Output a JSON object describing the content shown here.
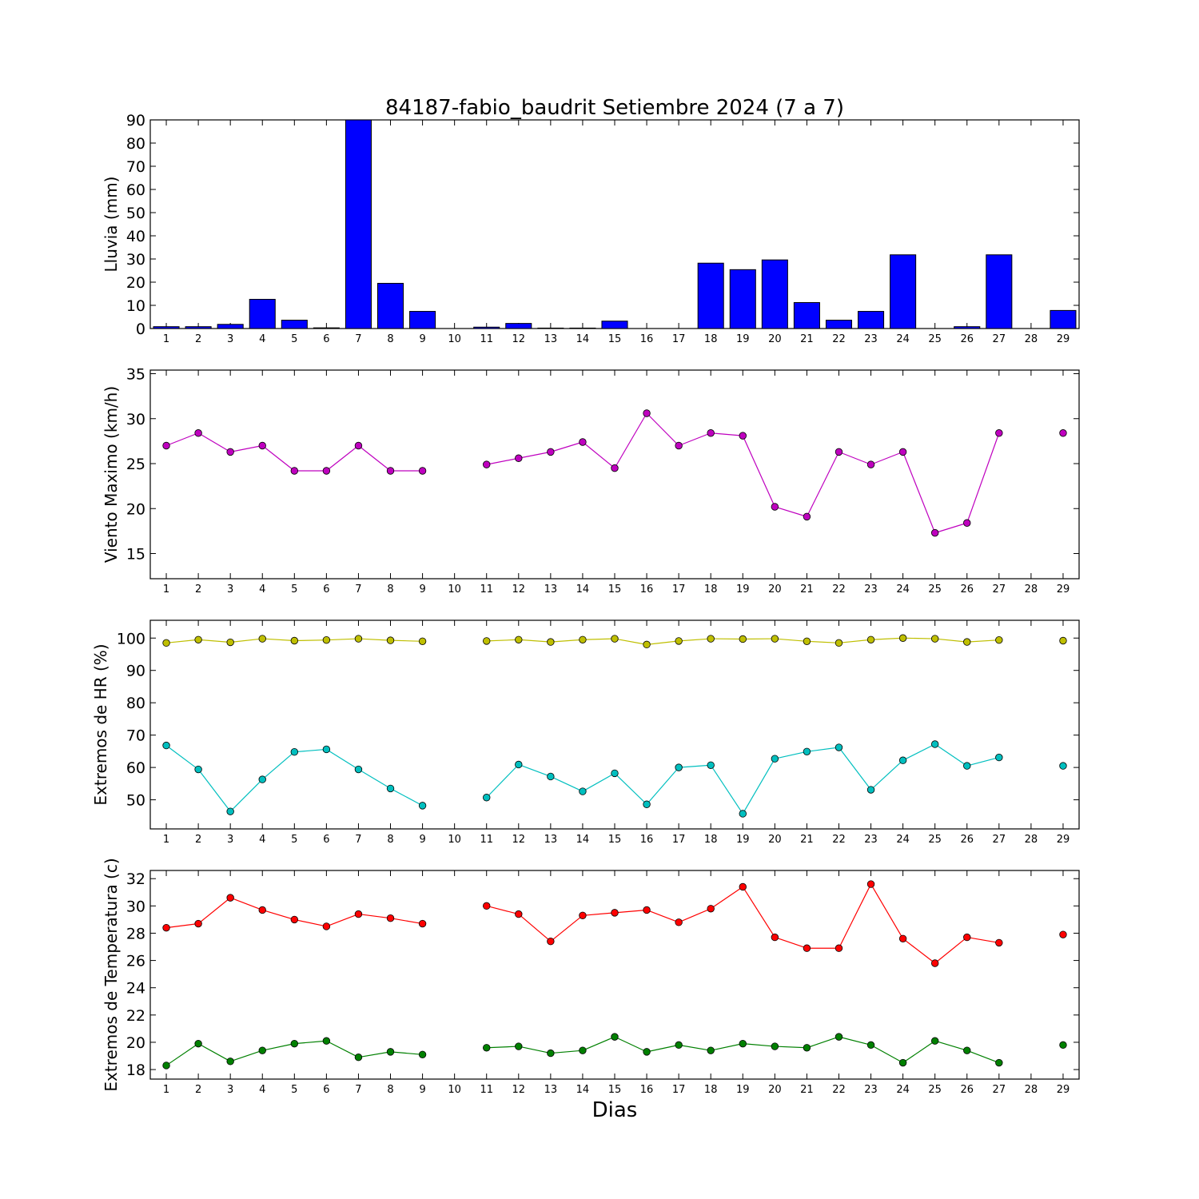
{
  "figure": {
    "title": "84187-fabio_baudrit Setiembre 2024  (7 a 7)",
    "xlabel": "Dias"
  },
  "chart_data": [
    {
      "id": "rain",
      "type": "bar",
      "ylabel": "Lluvia (mm)",
      "ylim": [
        0,
        90
      ],
      "yticks": [
        0,
        10,
        20,
        30,
        40,
        50,
        60,
        70,
        80,
        90
      ],
      "xticks": [
        "1",
        "2",
        "3",
        "4",
        "5",
        "6",
        "7",
        "8",
        "9",
        "10",
        "11",
        "12",
        "13",
        "14",
        "15",
        "16",
        "17",
        "18",
        "19",
        "20",
        "21",
        "22",
        "23",
        "24",
        "25",
        "26",
        "27",
        "28",
        "29"
      ],
      "color": "#0000ff",
      "series": [
        {
          "x": [
            1,
            2,
            3,
            4,
            5,
            6,
            7,
            8,
            9,
            10,
            11,
            12,
            13,
            14,
            15,
            16,
            17,
            18,
            19,
            20,
            21,
            22,
            23,
            24,
            25,
            26,
            27,
            28,
            29
          ],
          "values": [
            0.8,
            0.8,
            1.8,
            12.6,
            3.6,
            0.3,
            90,
            19.5,
            7.4,
            0,
            0.6,
            2.2,
            0.2,
            0.2,
            3.2,
            0,
            0,
            28.2,
            25.4,
            29.6,
            11.2,
            3.6,
            7.4,
            31.8,
            0,
            0.8,
            31.8,
            0,
            7.8
          ]
        }
      ]
    },
    {
      "id": "wind",
      "type": "line",
      "ylabel": "Viento Maximo (km/h)",
      "ylim": [
        12.2,
        35.4
      ],
      "yticks": [
        15,
        20,
        25,
        30,
        35
      ],
      "xticks": [
        "1",
        "2",
        "3",
        "4",
        "5",
        "6",
        "7",
        "8",
        "9",
        "10",
        "11",
        "12",
        "13",
        "14",
        "15",
        "16",
        "17",
        "18",
        "19",
        "20",
        "21",
        "22",
        "23",
        "24",
        "25",
        "26",
        "27",
        "28",
        "29"
      ],
      "series": [
        {
          "color": "#bf00bf",
          "x": [
            1,
            2,
            3,
            4,
            5,
            6,
            7,
            8,
            9,
            10,
            11,
            12,
            13,
            14,
            15,
            16,
            17,
            18,
            19,
            20,
            21,
            22,
            23,
            24,
            25,
            26,
            27,
            28,
            29
          ],
          "values": [
            27.0,
            28.4,
            26.3,
            27.0,
            24.2,
            24.2,
            27.0,
            24.2,
            24.2,
            null,
            24.9,
            25.6,
            26.3,
            27.4,
            24.5,
            30.6,
            27.0,
            28.4,
            28.1,
            20.2,
            19.1,
            26.3,
            24.9,
            26.3,
            17.3,
            18.4,
            28.4,
            null,
            28.4
          ]
        }
      ]
    },
    {
      "id": "humidity",
      "type": "line",
      "ylabel": "Extremos de HR (%)",
      "ylim": [
        41,
        105.5
      ],
      "yticks": [
        50,
        60,
        70,
        80,
        90,
        100
      ],
      "xticks": [
        "1",
        "2",
        "3",
        "4",
        "5",
        "6",
        "7",
        "8",
        "9",
        "10",
        "11",
        "12",
        "13",
        "14",
        "15",
        "16",
        "17",
        "18",
        "19",
        "20",
        "21",
        "22",
        "23",
        "24",
        "25",
        "26",
        "27",
        "28",
        "29"
      ],
      "series": [
        {
          "color": "#bfbf00",
          "x": [
            1,
            2,
            3,
            4,
            5,
            6,
            7,
            8,
            9,
            10,
            11,
            12,
            13,
            14,
            15,
            16,
            17,
            18,
            19,
            20,
            21,
            22,
            23,
            24,
            25,
            26,
            27,
            28,
            29
          ],
          "values": [
            98.5,
            99.5,
            98.7,
            99.8,
            99.2,
            99.4,
            99.8,
            99.3,
            99.0,
            null,
            99.1,
            99.5,
            98.8,
            99.5,
            99.8,
            98.0,
            99.1,
            99.8,
            99.7,
            99.8,
            99.0,
            98.5,
            99.5,
            100.0,
            99.8,
            98.8,
            99.4,
            null,
            99.2
          ]
        },
        {
          "color": "#00bfbf",
          "x": [
            1,
            2,
            3,
            4,
            5,
            6,
            7,
            8,
            9,
            10,
            11,
            12,
            13,
            14,
            15,
            16,
            17,
            18,
            19,
            20,
            21,
            22,
            23,
            24,
            25,
            26,
            27,
            28,
            29
          ],
          "values": [
            66.8,
            59.4,
            46.4,
            56.3,
            64.8,
            65.6,
            59.4,
            53.5,
            48.2,
            null,
            50.7,
            60.9,
            57.2,
            52.6,
            58.2,
            48.6,
            60.0,
            60.7,
            45.7,
            62.7,
            64.9,
            66.2,
            53.1,
            62.2,
            67.2,
            60.5,
            63.1,
            null,
            60.5
          ]
        }
      ]
    },
    {
      "id": "temperature",
      "type": "line",
      "ylabel": "Extremos de Temperatura (c)",
      "ylim": [
        17.3,
        32.6
      ],
      "yticks": [
        18,
        20,
        22,
        24,
        26,
        28,
        30,
        32
      ],
      "xticks": [
        "1",
        "2",
        "3",
        "4",
        "5",
        "6",
        "7",
        "8",
        "9",
        "10",
        "11",
        "12",
        "13",
        "14",
        "15",
        "16",
        "17",
        "18",
        "19",
        "20",
        "21",
        "22",
        "23",
        "24",
        "25",
        "26",
        "27",
        "28",
        "29"
      ],
      "series": [
        {
          "color": "#ff0000",
          "x": [
            1,
            2,
            3,
            4,
            5,
            6,
            7,
            8,
            9,
            10,
            11,
            12,
            13,
            14,
            15,
            16,
            17,
            18,
            19,
            20,
            21,
            22,
            23,
            24,
            25,
            26,
            27,
            28,
            29
          ],
          "values": [
            28.4,
            28.7,
            30.6,
            29.7,
            29.0,
            28.5,
            29.4,
            29.1,
            28.7,
            null,
            30.0,
            29.4,
            27.4,
            29.3,
            29.5,
            29.7,
            28.8,
            29.8,
            31.4,
            27.7,
            26.9,
            26.9,
            31.6,
            27.6,
            25.8,
            27.7,
            27.3,
            null,
            27.9
          ]
        },
        {
          "color": "#008000",
          "x": [
            1,
            2,
            3,
            4,
            5,
            6,
            7,
            8,
            9,
            10,
            11,
            12,
            13,
            14,
            15,
            16,
            17,
            18,
            19,
            20,
            21,
            22,
            23,
            24,
            25,
            26,
            27,
            28,
            29
          ],
          "values": [
            18.3,
            19.9,
            18.6,
            19.4,
            19.9,
            20.1,
            18.9,
            19.3,
            19.1,
            null,
            19.6,
            19.7,
            19.2,
            19.4,
            20.4,
            19.3,
            19.8,
            19.4,
            19.9,
            19.7,
            19.6,
            20.4,
            19.8,
            18.5,
            20.1,
            19.4,
            18.5,
            null,
            19.8
          ]
        }
      ]
    }
  ]
}
